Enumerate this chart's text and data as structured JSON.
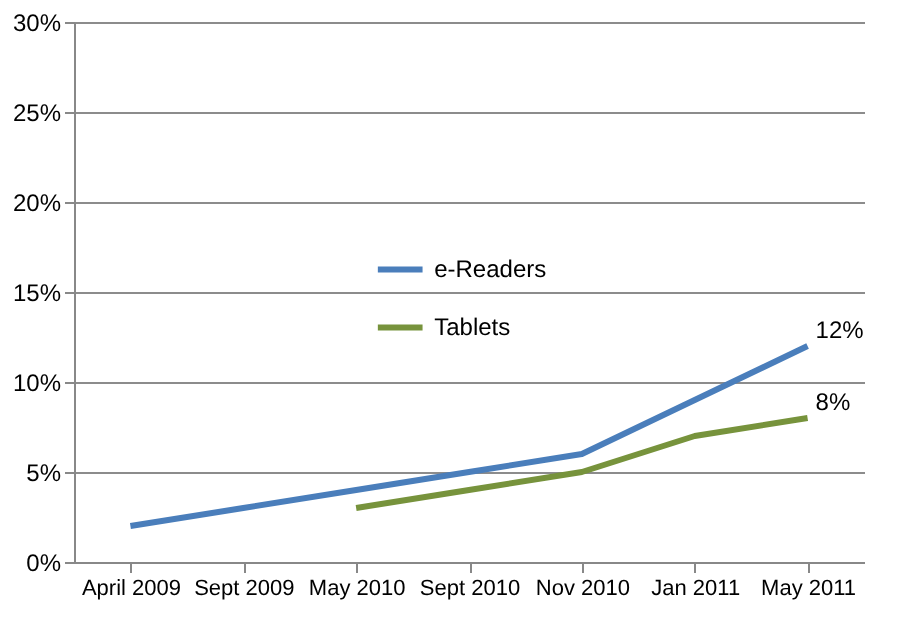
{
  "chart_data": {
    "type": "line",
    "categories": [
      "April 2009",
      "Sept 2009",
      "May 2010",
      "Sept 2010",
      "Nov 2010",
      "Jan 2011",
      "May 2011"
    ],
    "series": [
      {
        "name": "e-Readers",
        "color": "#4a7ebb",
        "values": [
          2,
          3,
          4,
          5,
          6,
          9,
          12
        ]
      },
      {
        "name": "Tablets",
        "color": "#77933c",
        "values": [
          null,
          null,
          3,
          4,
          5,
          7,
          8
        ]
      }
    ],
    "ylim": [
      0,
      30
    ],
    "yticks": [
      {
        "value": 0,
        "label": "0%"
      },
      {
        "value": 5,
        "label": "5%"
      },
      {
        "value": 10,
        "label": "10%"
      },
      {
        "value": 15,
        "label": "15%"
      },
      {
        "value": 20,
        "label": "20%"
      },
      {
        "value": 25,
        "label": "25%"
      },
      {
        "value": 30,
        "label": "30%"
      }
    ],
    "annotations": [
      {
        "text": "12%",
        "x": "May 2011",
        "y": 12
      },
      {
        "text": "8%",
        "x": "May 2011",
        "y": 8
      }
    ],
    "grid": "y",
    "legend": "center",
    "marker": "none",
    "line_style": "solid"
  }
}
